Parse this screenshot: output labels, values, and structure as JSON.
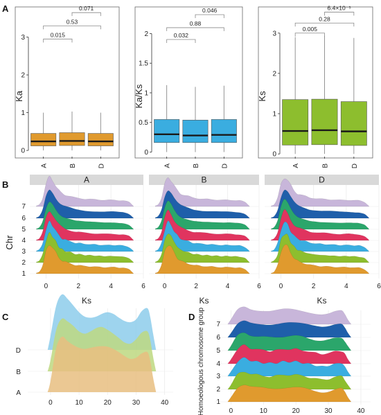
{
  "panel_labels": {
    "a": "A",
    "b": "B",
    "c": "C",
    "d": "D"
  },
  "colors": {
    "orange": "#E09A2E",
    "blue": "#3AADE0",
    "green": "#8DBE2E",
    "pink": "#E0345F",
    "teal": "#2BA66B",
    "navy": "#1F5FAA",
    "lavender": "#C8B6DA",
    "strip": "#D9D9D9",
    "median": "#1a1a1a"
  },
  "chart_data": [
    {
      "id": "A1",
      "type": "box",
      "ylabel": "Ka",
      "categories": [
        "A",
        "B",
        "D"
      ],
      "ylim": [
        -0.2,
        3.8
      ],
      "yticks": [
        0,
        1,
        2,
        3
      ],
      "color": "#E09A2E",
      "boxes": [
        {
          "min": 0.0,
          "q1": 0.12,
          "median": 0.24,
          "q3": 0.45,
          "max": 1.0
        },
        {
          "min": 0.0,
          "q1": 0.13,
          "median": 0.25,
          "q3": 0.47,
          "max": 1.03
        },
        {
          "min": 0.0,
          "q1": 0.12,
          "median": 0.24,
          "q3": 0.45,
          "max": 1.0
        }
      ],
      "comparisons": [
        {
          "pair": [
            0,
            1
          ],
          "label": "0.015",
          "y": 2.95
        },
        {
          "pair": [
            0,
            2
          ],
          "label": "0.53",
          "y": 3.3
        },
        {
          "pair": [
            1,
            2
          ],
          "label": "0.071",
          "y": 3.65
        }
      ]
    },
    {
      "id": "A2",
      "type": "box",
      "ylabel": "Ka/Ks",
      "categories": [
        "A",
        "B",
        "D"
      ],
      "ylim": [
        -0.1,
        2.45
      ],
      "yticks": [
        0.0,
        0.5,
        1.0,
        1.5,
        2.0
      ],
      "color": "#3AADE0",
      "boxes": [
        {
          "min": 0.0,
          "q1": 0.16,
          "median": 0.3,
          "q3": 0.55,
          "max": 1.13
        },
        {
          "min": 0.0,
          "q1": 0.16,
          "median": 0.28,
          "q3": 0.54,
          "max": 1.1
        },
        {
          "min": 0.0,
          "q1": 0.16,
          "median": 0.29,
          "q3": 0.55,
          "max": 1.12
        }
      ],
      "comparisons": [
        {
          "pair": [
            0,
            1
          ],
          "label": "0.032",
          "y": 1.9
        },
        {
          "pair": [
            0,
            2
          ],
          "label": "0.88",
          "y": 2.1
        },
        {
          "pair": [
            1,
            2
          ],
          "label": "0.046",
          "y": 2.32
        }
      ]
    },
    {
      "id": "A3",
      "type": "box",
      "ylabel": "Ks",
      "categories": [
        "A",
        "B",
        "D"
      ],
      "ylim": [
        -0.1,
        3.65
      ],
      "yticks": [
        0,
        1,
        2,
        3
      ],
      "color": "#8DBE2E",
      "boxes": [
        {
          "min": 0.0,
          "q1": 0.22,
          "median": 0.57,
          "q3": 1.35,
          "max": 2.9
        },
        {
          "min": 0.0,
          "q1": 0.23,
          "median": 0.59,
          "q3": 1.36,
          "max": 2.93
        },
        {
          "min": 0.0,
          "q1": 0.21,
          "median": 0.56,
          "q3": 1.3,
          "max": 2.88
        }
      ],
      "comparisons": [
        {
          "pair": [
            0,
            1
          ],
          "label": "0.005",
          "y": 3.0
        },
        {
          "pair": [
            0,
            2
          ],
          "label": "0.28",
          "y": 3.25
        },
        {
          "pair": [
            1,
            2
          ],
          "label": "6.4×10⁻⁵",
          "y": 3.52
        }
      ]
    },
    {
      "id": "B",
      "type": "area",
      "subtype": "ridgeline-facets",
      "facets": [
        "A",
        "B",
        "D"
      ],
      "xlabel": "Ks",
      "ylabel": "Chr",
      "xlim": [
        -1,
        6
      ],
      "xticks": [
        0,
        2,
        4,
        6
      ],
      "rows": [
        "1",
        "2",
        "3",
        "4",
        "5",
        "6",
        "7"
      ],
      "row_colors": [
        "#E09A2E",
        "#8DBE2E",
        "#3AADE0",
        "#E0345F",
        "#2BA66B",
        "#1F5FAA",
        "#C8B6DA"
      ],
      "x": [
        -0.6,
        -0.4,
        -0.2,
        0.0,
        0.2,
        0.4,
        0.6,
        0.8,
        1.0,
        1.2,
        1.5,
        1.8,
        2.1,
        2.4,
        2.7,
        3.0,
        3.3,
        3.6,
        3.9,
        4.2,
        4.5,
        4.8,
        5.1,
        5.3,
        5.4
      ],
      "density": [
        0.02,
        0.08,
        0.3,
        0.75,
        1.0,
        0.92,
        0.72,
        0.55,
        0.45,
        0.4,
        0.35,
        0.3,
        0.28,
        0.26,
        0.25,
        0.24,
        0.23,
        0.22,
        0.22,
        0.22,
        0.21,
        0.2,
        0.15,
        0.06,
        0.0
      ]
    },
    {
      "id": "C",
      "type": "area",
      "subtype": "ridgeline",
      "rows": [
        "A",
        "B",
        "D"
      ],
      "row_colors": [
        "#E8BE80",
        "#BDD880",
        "#8DCDEB"
      ],
      "xlim": [
        -8,
        43
      ],
      "xticks": [
        0,
        10,
        20,
        30,
        40
      ],
      "x": [
        -1,
        0,
        2,
        4,
        6,
        8,
        10,
        12,
        14,
        16,
        18,
        20,
        22,
        24,
        26,
        28,
        30,
        32,
        34,
        35,
        36,
        37
      ],
      "series": [
        {
          "name": "A",
          "density": [
            0,
            0.2,
            0.8,
            1.0,
            0.92,
            0.85,
            0.8,
            0.78,
            0.8,
            0.82,
            0.83,
            0.82,
            0.78,
            0.72,
            0.65,
            0.6,
            0.62,
            0.7,
            0.72,
            0.55,
            0.25,
            0
          ]
        },
        {
          "name": "B",
          "density": [
            0,
            0.2,
            0.75,
            0.95,
            0.9,
            0.82,
            0.72,
            0.68,
            0.72,
            0.78,
            0.8,
            0.75,
            0.68,
            0.6,
            0.52,
            0.5,
            0.58,
            0.7,
            0.72,
            0.55,
            0.25,
            0
          ]
        },
        {
          "name": "D",
          "density": [
            0,
            0.25,
            0.8,
            1.0,
            0.92,
            0.8,
            0.68,
            0.6,
            0.58,
            0.6,
            0.65,
            0.68,
            0.65,
            0.58,
            0.52,
            0.5,
            0.55,
            0.7,
            0.75,
            0.58,
            0.28,
            0
          ]
        }
      ]
    },
    {
      "id": "D",
      "type": "area",
      "subtype": "ridgeline",
      "ylabel": "Homoeologous chromosome group",
      "rows": [
        "1",
        "2",
        "3",
        "4",
        "5",
        "6",
        "7"
      ],
      "row_colors": [
        "#E09A2E",
        "#8DBE2E",
        "#3AADE0",
        "#E0345F",
        "#2BA66B",
        "#1F5FAA",
        "#C8B6DA"
      ],
      "xlim": [
        -5,
        43
      ],
      "xticks": [
        0,
        10,
        20,
        30,
        40
      ],
      "x": [
        -1,
        0,
        2,
        4,
        6,
        8,
        10,
        12,
        14,
        16,
        18,
        20,
        22,
        24,
        26,
        28,
        30,
        32,
        34,
        35,
        36,
        37
      ],
      "density": [
        0,
        0.25,
        0.8,
        1.0,
        0.88,
        0.8,
        0.75,
        0.72,
        0.75,
        0.8,
        0.82,
        0.8,
        0.75,
        0.68,
        0.6,
        0.55,
        0.58,
        0.68,
        0.72,
        0.55,
        0.25,
        0
      ]
    }
  ]
}
